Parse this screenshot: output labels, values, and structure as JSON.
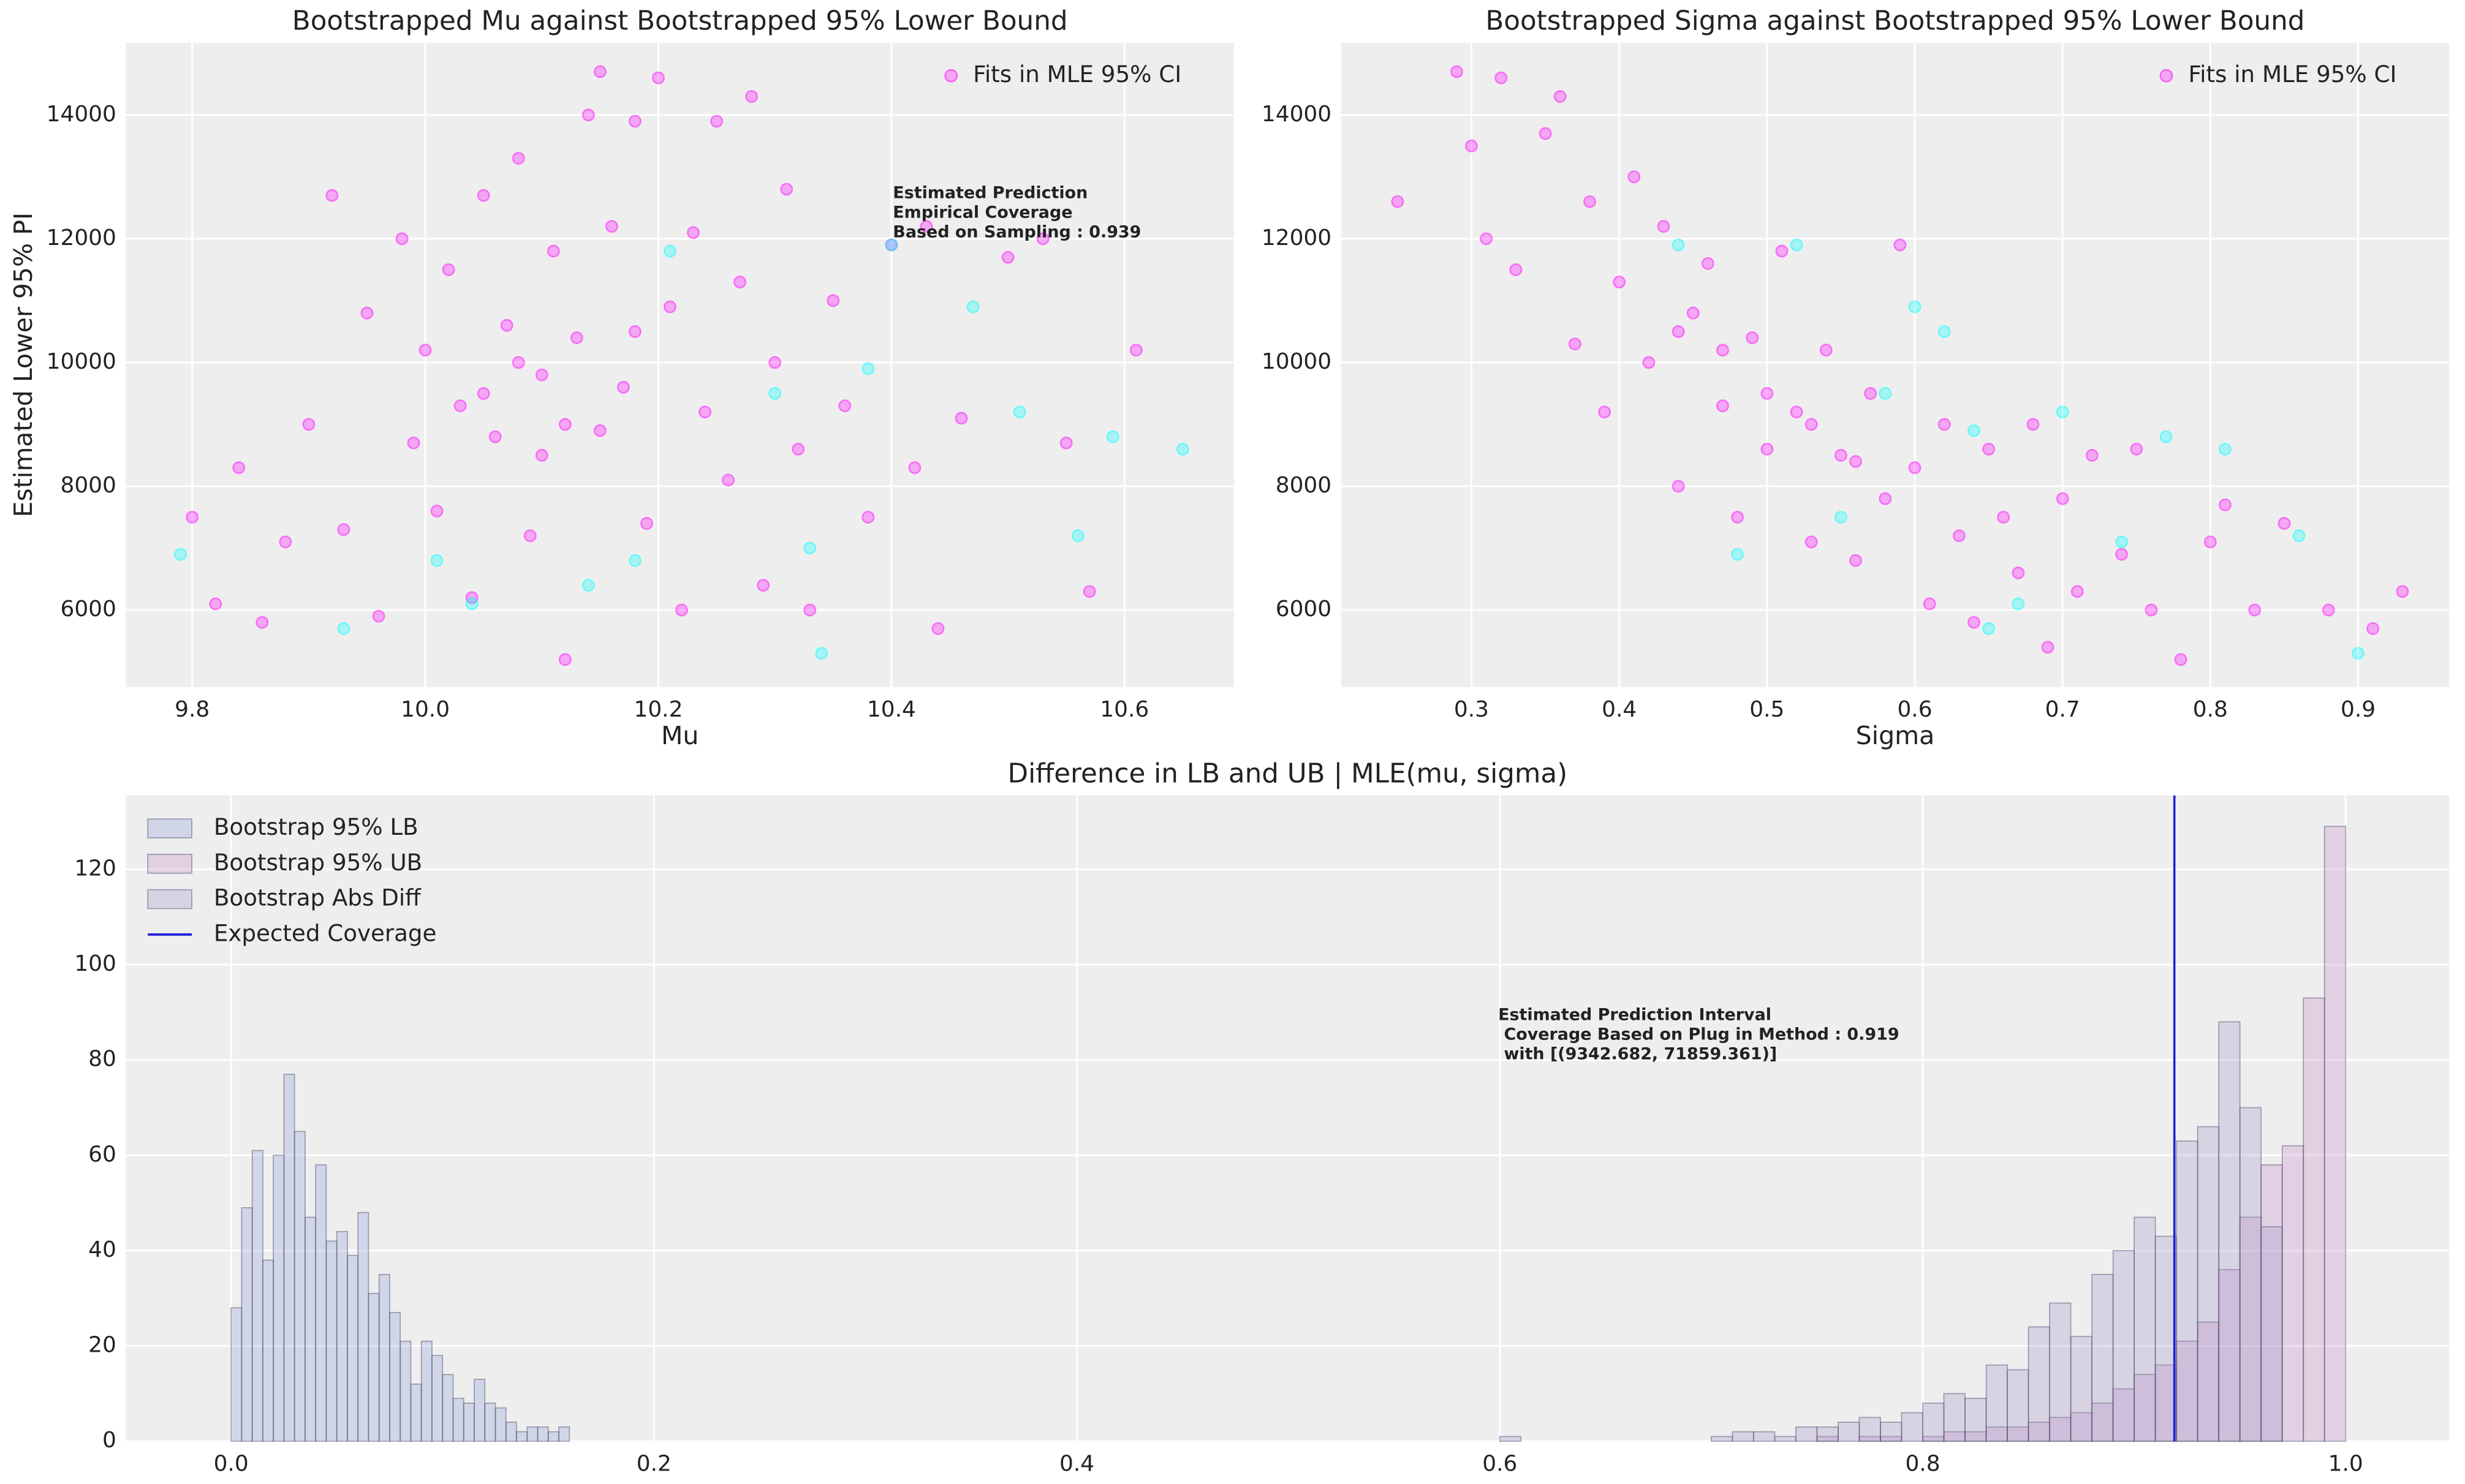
{
  "chart_data": [
    {
      "type": "scatter",
      "title": "Bootstrapped Mu against Bootstrapped 95% Lower Bound",
      "xlabel": "Mu",
      "ylabel": "Estimated Lower 95% PI",
      "xlim": [
        9.743,
        10.694
      ],
      "ylim": [
        4756,
        15168
      ],
      "xticks": [
        9.8,
        {
          "value": 10,
          "label": "10.0"
        },
        10.2,
        10.4,
        10.6
      ],
      "yticks": [
        6000,
        8000,
        10000,
        12000,
        14000
      ],
      "grid": true,
      "legend": "upper right",
      "annotation": [
        "Estimated Prediction",
        "Empirical Coverage",
        "Based on Sampling : 0.939"
      ],
      "series": [
        {
          "name": "Fits in MLE 95% CI",
          "color": "#ff00ff",
          "x": [
            9.8,
            9.82,
            9.84,
            9.86,
            9.88,
            9.9,
            9.92,
            9.93,
            9.95,
            9.96,
            9.98,
            9.99,
            10.0,
            10.01,
            10.02,
            10.03,
            10.04,
            10.05,
            10.06,
            10.07,
            10.08,
            10.09,
            10.1,
            10.11,
            10.12,
            10.13,
            10.14,
            10.15,
            10.16,
            10.17,
            10.18,
            10.19,
            10.2,
            10.21,
            10.22,
            10.23,
            10.24,
            10.25,
            10.26,
            10.27,
            10.28,
            10.29,
            10.3,
            10.31,
            10.32,
            10.33,
            10.35,
            10.36,
            10.38,
            10.4,
            10.42,
            10.43,
            10.44,
            10.46,
            10.5,
            10.53,
            10.55,
            10.57,
            10.61,
            10.15,
            10.1,
            10.05,
            10.18,
            10.12,
            10.08
          ],
          "values": [
            7500,
            6100,
            8300,
            5800,
            7100,
            9000,
            12700,
            7300,
            10800,
            5900,
            12000,
            8700,
            10200,
            7600,
            11500,
            9300,
            6200,
            12700,
            8800,
            10600,
            13300,
            7200,
            9800,
            11800,
            5200,
            10400,
            14000,
            8900,
            12200,
            9600,
            13900,
            7400,
            14600,
            10900,
            6000,
            12100,
            9200,
            13900,
            8100,
            11300,
            14300,
            6400,
            10000,
            12800,
            8600,
            6000,
            11000,
            9300,
            7500,
            11900,
            8300,
            12200,
            5700,
            9100,
            11700,
            12000,
            8700,
            6300,
            10200,
            14700,
            8500,
            9500,
            10500,
            9000,
            10000
          ]
        },
        {
          "color": "#00ffff",
          "x": [
            9.79,
            9.93,
            10.01,
            10.04,
            10.14,
            10.18,
            10.21,
            10.3,
            10.33,
            10.34,
            10.38,
            10.4,
            10.47,
            10.51,
            10.56,
            10.59,
            10.65
          ],
          "values": [
            6900,
            5700,
            6800,
            6100,
            6400,
            6800,
            11800,
            9500,
            7000,
            5300,
            9900,
            11900,
            10900,
            9200,
            7200,
            8800,
            8600
          ]
        }
      ]
    },
    {
      "type": "scatter",
      "title": "Bootstrapped Sigma against Bootstrapped 95% Lower Bound",
      "xlabel": "Sigma",
      "xlim": [
        0.2117,
        0.9617
      ],
      "ylim": [
        4756,
        15168
      ],
      "xticks": [
        0.3,
        0.4,
        0.5,
        0.6,
        0.7,
        0.8,
        0.9
      ],
      "yticks": [
        6000,
        8000,
        10000,
        12000,
        14000
      ],
      "grid": true,
      "legend": "upper right",
      "series": [
        {
          "name": "Fits in MLE 95% CI",
          "color": "#ff00ff",
          "x": [
            0.25,
            0.29,
            0.3,
            0.31,
            0.32,
            0.33,
            0.35,
            0.36,
            0.37,
            0.38,
            0.39,
            0.4,
            0.41,
            0.42,
            0.43,
            0.44,
            0.45,
            0.46,
            0.47,
            0.48,
            0.49,
            0.5,
            0.51,
            0.52,
            0.53,
            0.54,
            0.55,
            0.56,
            0.57,
            0.58,
            0.59,
            0.6,
            0.61,
            0.62,
            0.63,
            0.64,
            0.65,
            0.66,
            0.67,
            0.68,
            0.69,
            0.7,
            0.71,
            0.72,
            0.74,
            0.75,
            0.76,
            0.78,
            0.8,
            0.81,
            0.83,
            0.85,
            0.88,
            0.91,
            0.93,
            0.44,
            0.5,
            0.53,
            0.47,
            0.56
          ],
          "values": [
            12600,
            14700,
            13500,
            12000,
            14600,
            11500,
            13700,
            14300,
            10300,
            12600,
            9200,
            11300,
            13000,
            10000,
            12200,
            8000,
            10800,
            11600,
            9300,
            7500,
            10400,
            8600,
            11800,
            9200,
            7100,
            10200,
            8500,
            6800,
            9500,
            7800,
            11900,
            8300,
            6100,
            9000,
            7200,
            5800,
            8600,
            7500,
            6600,
            9000,
            5400,
            7800,
            6300,
            8500,
            6900,
            8600,
            6000,
            5200,
            7100,
            7700,
            6000,
            7400,
            6000,
            5700,
            6300,
            10500,
            9500,
            9000,
            10200,
            8400
          ]
        },
        {
          "color": "#00ffff",
          "x": [
            0.44,
            0.48,
            0.52,
            0.55,
            0.58,
            0.6,
            0.62,
            0.64,
            0.65,
            0.67,
            0.7,
            0.74,
            0.77,
            0.81,
            0.86,
            0.9
          ],
          "values": [
            11900,
            6900,
            11900,
            7500,
            9500,
            10900,
            10500,
            8900,
            5700,
            6100,
            9200,
            7100,
            8800,
            8600,
            7200,
            5300
          ]
        }
      ]
    },
    {
      "type": "histogram",
      "title": "Difference in LB and UB | MLE(mu, sigma)",
      "xlim": [
        -0.0498,
        1.049
      ],
      "ylim": [
        0,
        135.5
      ],
      "xticks": [
        {
          "value": 0,
          "label": "0.0"
        },
        0.2,
        0.4,
        0.6,
        0.8,
        {
          "value": 1,
          "label": "1.0"
        }
      ],
      "yticks": [
        0,
        20,
        40,
        60,
        80,
        100,
        120
      ],
      "grid": true,
      "legend": "upper left",
      "annotation": [
        "Estimated Prediction Interval",
        " Coverage Based on Plug in Method : 0.919",
        " with [(9342.682, 71859.361)]"
      ],
      "series": [
        {
          "name": "Bootstrap 95% LB",
          "color": "#8c9fd6",
          "bins": [
            0,
            0.005,
            0.01,
            0.015,
            0.02,
            0.025,
            0.03,
            0.035,
            0.04,
            0.045,
            0.05,
            0.055,
            0.06,
            0.065,
            0.07,
            0.075,
            0.08,
            0.085,
            0.09,
            0.095,
            0.1,
            0.105,
            0.11,
            0.115,
            0.12,
            0.125,
            0.13,
            0.135,
            0.14,
            0.145,
            0.15,
            0.155,
            0.16
          ],
          "values": [
            28,
            49,
            61,
            38,
            60,
            77,
            65,
            47,
            58,
            42,
            44,
            39,
            48,
            31,
            35,
            27,
            21,
            12,
            21,
            18,
            14,
            9,
            8,
            13,
            8,
            7,
            4,
            2,
            3,
            3,
            2,
            3
          ]
        },
        {
          "name": "Bootstrap 95% UB",
          "color": "#c58ac5",
          "bins": [
            0.75,
            0.76,
            0.77,
            0.78,
            0.79,
            0.8,
            0.81,
            0.82,
            0.83,
            0.84,
            0.85,
            0.86,
            0.87,
            0.88,
            0.89,
            0.9,
            0.91,
            0.92,
            0.93,
            0.94,
            0.95,
            0.96,
            0.97,
            0.98,
            0.99,
            1.0
          ],
          "values": [
            1,
            0,
            1,
            1,
            0,
            1,
            2,
            2,
            3,
            3,
            4,
            5,
            6,
            8,
            11,
            14,
            16,
            21,
            25,
            36,
            47,
            58,
            62,
            93,
            129
          ]
        },
        {
          "name": "Bootstrap Abs Diff",
          "color": "#a295c8",
          "bins": [
            0.6,
            0.61,
            0.62,
            0.63,
            0.64,
            0.65,
            0.66,
            0.67,
            0.68,
            0.69,
            0.7,
            0.71,
            0.72,
            0.73,
            0.74,
            0.75,
            0.76,
            0.77,
            0.78,
            0.79,
            0.8,
            0.81,
            0.82,
            0.83,
            0.84,
            0.85,
            0.86,
            0.87,
            0.88,
            0.89,
            0.9,
            0.91,
            0.92,
            0.93,
            0.94,
            0.95,
            0.96,
            0.97
          ],
          "values": [
            1,
            0,
            0,
            0,
            0,
            0,
            0,
            0,
            0,
            0,
            1,
            2,
            2,
            1,
            3,
            3,
            4,
            5,
            4,
            6,
            8,
            10,
            9,
            16,
            15,
            24,
            29,
            22,
            35,
            40,
            47,
            43,
            63,
            66,
            88,
            70,
            45
          ]
        }
      ],
      "vline": {
        "name": "Expected Coverage",
        "value": 0.919,
        "color": "#1f1fd6"
      }
    }
  ]
}
